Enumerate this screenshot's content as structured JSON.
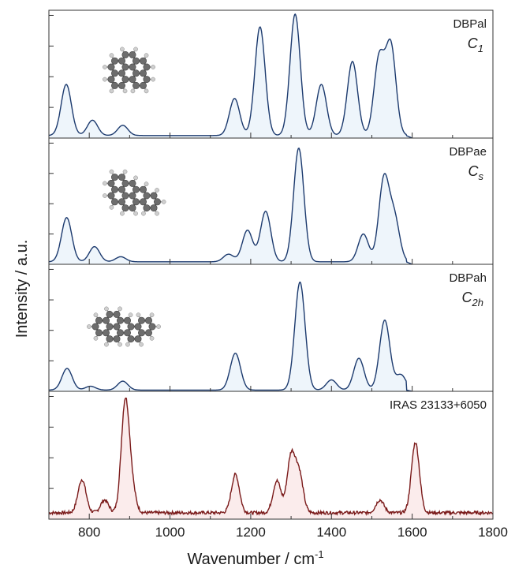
{
  "chart_data": {
    "type": "line",
    "xlabel": "Wavenumber / cm",
    "xlabel_superscript": "-1",
    "ylabel": "Intensity / a.u.",
    "xlim": [
      700,
      1800
    ],
    "x_ticks": [
      "800",
      "1000",
      "1200",
      "1400",
      "1600",
      "1800"
    ],
    "grid": false,
    "panels": [
      {
        "label": "DBPal",
        "symmetry": "C",
        "symmetry_sub": "1",
        "fill": "#eef5fb",
        "line_color": "#1c3a6e",
        "baseline": 0.02,
        "peaks": [
          {
            "x": 743,
            "y": 0.4
          },
          {
            "x": 808,
            "y": 0.12
          },
          {
            "x": 883,
            "y": 0.08
          },
          {
            "x": 1160,
            "y": 0.29
          },
          {
            "x": 1223,
            "y": 0.85
          },
          {
            "x": 1310,
            "y": 0.95
          },
          {
            "x": 1375,
            "y": 0.4
          },
          {
            "x": 1452,
            "y": 0.58
          },
          {
            "x": 1518,
            "y": 0.6
          },
          {
            "x": 1547,
            "y": 0.7
          }
        ]
      },
      {
        "label": "DBPae",
        "symmetry": "C",
        "symmetry_sub": "s",
        "fill": "#eef5fb",
        "line_color": "#1c3a6e",
        "baseline": 0.02,
        "peaks": [
          {
            "x": 744,
            "y": 0.35
          },
          {
            "x": 813,
            "y": 0.12
          },
          {
            "x": 878,
            "y": 0.04
          },
          {
            "x": 1145,
            "y": 0.06
          },
          {
            "x": 1192,
            "y": 0.25
          },
          {
            "x": 1237,
            "y": 0.4
          },
          {
            "x": 1319,
            "y": 0.9
          },
          {
            "x": 1479,
            "y": 0.22
          },
          {
            "x": 1530,
            "y": 0.65
          },
          {
            "x": 1556,
            "y": 0.34
          }
        ]
      },
      {
        "label": "DBPah",
        "symmetry": "C",
        "symmetry_sub": "2h",
        "fill": "#eef5fb",
        "line_color": "#1c3a6e",
        "baseline": 0.01,
        "peaks": [
          {
            "x": 745,
            "y": 0.17
          },
          {
            "x": 803,
            "y": 0.03
          },
          {
            "x": 883,
            "y": 0.07
          },
          {
            "x": 1162,
            "y": 0.29
          },
          {
            "x": 1322,
            "y": 0.85
          },
          {
            "x": 1400,
            "y": 0.08
          },
          {
            "x": 1468,
            "y": 0.25
          },
          {
            "x": 1532,
            "y": 0.55
          },
          {
            "x": 1572,
            "y": 0.12
          }
        ]
      },
      {
        "label": "IRAS 23133+6050",
        "symmetry": "",
        "symmetry_sub": "",
        "fill": "#fbecec",
        "line_color": "#7a1a1a",
        "baseline": 0.05,
        "noisy": true,
        "peaks": [
          {
            "x": 782,
            "y": 0.26
          },
          {
            "x": 838,
            "y": 0.1
          },
          {
            "x": 889,
            "y": 0.85
          },
          {
            "x": 905,
            "y": 0.18
          },
          {
            "x": 1162,
            "y": 0.3
          },
          {
            "x": 1265,
            "y": 0.25
          },
          {
            "x": 1300,
            "y": 0.44
          },
          {
            "x": 1320,
            "y": 0.3
          },
          {
            "x": 1520,
            "y": 0.1
          },
          {
            "x": 1608,
            "y": 0.55
          }
        ]
      }
    ]
  }
}
